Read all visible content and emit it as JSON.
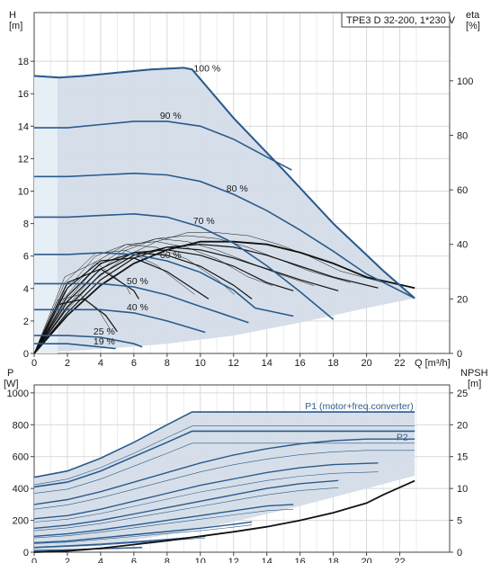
{
  "chart_data": [
    {
      "type": "line",
      "title": "TPE3 D 32-200, 1*230 V",
      "xlabel": "Q [m³/h]",
      "ylabel": "H",
      "ylabel_unit": "[m]",
      "y2label": "eta",
      "y2label_unit": "[%]",
      "xlim": [
        0,
        25
      ],
      "ylim": [
        0,
        21
      ],
      "y2lim": [
        0,
        125
      ],
      "x_ticks": [
        "0",
        "2",
        "4",
        "6",
        "8",
        "10",
        "12",
        "14",
        "16",
        "18",
        "20",
        "22"
      ],
      "y_ticks": [
        "0",
        "2",
        "4",
        "6",
        "8",
        "10",
        "12",
        "14",
        "16",
        "18"
      ],
      "y2_ticks": [
        "0",
        "20",
        "40",
        "60",
        "80",
        "100"
      ],
      "grid": true,
      "colors": {
        "curve": "#2a5a8c",
        "area": "#d4dde8",
        "eff": "#111111",
        "grid": "#d9d9d9",
        "axis": "#444444"
      },
      "series": [
        {
          "name": "100 %",
          "x": [
            0,
            1.5,
            3,
            5,
            7,
            9,
            9.5,
            12,
            15,
            18,
            21,
            22.9
          ],
          "y": [
            17.1,
            17.0,
            17.1,
            17.3,
            17.5,
            17.6,
            17.5,
            14.5,
            11.3,
            8.0,
            5.1,
            3.4
          ]
        },
        {
          "name": "90 %",
          "x": [
            0,
            2,
            4,
            6,
            8,
            10,
            12,
            14,
            15.5
          ],
          "y": [
            13.9,
            13.9,
            14.1,
            14.3,
            14.3,
            14.0,
            13.2,
            12.1,
            11.3
          ]
        },
        {
          "name": "80 %",
          "x": [
            0,
            2,
            4,
            6,
            8,
            10,
            12,
            14,
            16,
            18,
            20,
            22.9
          ],
          "y": [
            10.9,
            10.9,
            11.0,
            11.1,
            11.0,
            10.6,
            9.8,
            8.8,
            7.6,
            6.3,
            4.9,
            3.4
          ]
        },
        {
          "name": "70 %",
          "x": [
            0,
            2,
            4,
            6,
            8,
            10,
            12,
            14,
            16,
            18
          ],
          "y": [
            8.4,
            8.4,
            8.5,
            8.6,
            8.4,
            7.8,
            6.8,
            5.4,
            3.8,
            2.1
          ]
        },
        {
          "name": "60 %",
          "x": [
            0,
            2,
            4,
            6,
            8,
            10,
            12,
            13.3,
            15.6
          ],
          "y": [
            6.1,
            6.1,
            6.2,
            6.1,
            5.7,
            5.0,
            3.9,
            2.8,
            2.3
          ]
        },
        {
          "name": "50 %",
          "x": [
            0,
            2,
            4,
            6,
            8,
            10,
            12.9
          ],
          "y": [
            4.3,
            4.3,
            4.3,
            4.1,
            3.6,
            2.9,
            1.9
          ]
        },
        {
          "name": "40 %",
          "x": [
            0,
            2,
            4,
            6,
            8,
            10.3
          ],
          "y": [
            2.7,
            2.7,
            2.7,
            2.5,
            2.0,
            1.3
          ]
        },
        {
          "name": "25 %",
          "x": [
            0,
            2,
            4,
            6,
            6.5
          ],
          "y": [
            1.1,
            1.1,
            1.0,
            0.6,
            0.4
          ]
        },
        {
          "name": "19 %",
          "x": [
            0,
            2,
            4,
            4.9
          ],
          "y": [
            0.6,
            0.6,
            0.4,
            0.3
          ]
        }
      ],
      "efficiency": [
        {
          "x": [
            0,
            2,
            4,
            6,
            8,
            10,
            12,
            14,
            16,
            18,
            20,
            22.9
          ],
          "y": [
            0,
            14,
            25,
            33,
            38,
            41,
            41,
            40,
            37,
            33,
            28,
            24
          ]
        },
        {
          "x": [
            0,
            2,
            4,
            6,
            8,
            10,
            12,
            14,
            16,
            18,
            20.7
          ],
          "y": [
            0,
            15,
            27,
            35,
            39,
            40,
            39,
            36,
            32,
            28,
            24
          ]
        },
        {
          "x": [
            0,
            2,
            4,
            6,
            8,
            10,
            12,
            14,
            16,
            18.3
          ],
          "y": [
            0,
            17,
            29,
            36,
            39,
            38,
            35,
            31,
            27,
            23
          ]
        },
        {
          "x": [
            0,
            2,
            4,
            6,
            8,
            10,
            12,
            14,
            15.6
          ],
          "y": [
            0,
            19,
            31,
            37,
            38,
            36,
            32,
            26,
            23
          ]
        },
        {
          "x": [
            0,
            2,
            4,
            6,
            8,
            10,
            12,
            13.1
          ],
          "y": [
            0,
            21,
            33,
            37,
            36,
            32,
            25,
            20
          ]
        },
        {
          "x": [
            0,
            2,
            4,
            6,
            8,
            10.5
          ],
          "y": [
            0,
            24,
            34,
            35,
            30,
            20
          ]
        },
        {
          "x": [
            0,
            2,
            4,
            6,
            6.3
          ],
          "y": [
            0,
            26,
            31,
            23,
            20
          ]
        },
        {
          "x": [
            0,
            1.5,
            3,
            4.3,
            5.0
          ],
          "y": [
            0,
            18,
            20,
            14,
            8
          ]
        }
      ],
      "annotations": [
        "100 %",
        "90 %",
        "80 %",
        "70 %",
        "60 %",
        "50 %",
        "40 %",
        "25 %",
        "19 %"
      ]
    },
    {
      "type": "line",
      "ylabel": "P",
      "ylabel_unit": "[W]",
      "y2label": "NPSH",
      "y2label_unit": "[m]",
      "xlim": [
        0,
        25
      ],
      "ylim": [
        0,
        1050
      ],
      "y2lim": [
        0,
        26.25
      ],
      "x_ticks": [
        "0",
        "2",
        "4",
        "6",
        "8",
        "10",
        "12",
        "14",
        "16",
        "18",
        "20",
        "22"
      ],
      "y_ticks": [
        "0",
        "200",
        "400",
        "600",
        "800",
        "1000"
      ],
      "y2_ticks": [
        "0",
        "5",
        "10",
        "15",
        "20",
        "25"
      ],
      "grid": true,
      "series": [
        {
          "name": "P1 (motor+freq.converter)",
          "x": [
            0,
            2,
            4,
            6,
            8,
            9.5,
            12,
            15,
            18,
            21,
            22.9
          ],
          "y": [
            470,
            510,
            590,
            690,
            800,
            880,
            880,
            880,
            880,
            880,
            880
          ]
        },
        {
          "name": "P2",
          "x": [
            0,
            2,
            4,
            6,
            8,
            9.5,
            12,
            15,
            18,
            21,
            22.9
          ],
          "y": [
            410,
            440,
            510,
            600,
            690,
            760,
            760,
            760,
            760,
            760,
            760
          ]
        },
        {
          "name": "",
          "x": [
            0,
            2,
            4,
            6,
            8,
            10,
            12,
            14,
            16,
            18,
            20,
            22.9
          ],
          "y": [
            300,
            330,
            380,
            440,
            500,
            560,
            610,
            650,
            680,
            700,
            710,
            710
          ]
        },
        {
          "name": "",
          "x": [
            0,
            2,
            4,
            6,
            8,
            10,
            12,
            14,
            16,
            18,
            20.7
          ],
          "y": [
            210,
            230,
            270,
            320,
            370,
            420,
            460,
            500,
            530,
            550,
            560
          ]
        },
        {
          "name": "",
          "x": [
            0,
            2,
            4,
            6,
            8,
            10,
            12,
            14,
            16,
            18.3
          ],
          "y": [
            150,
            170,
            200,
            240,
            280,
            320,
            360,
            400,
            430,
            450
          ]
        },
        {
          "name": "",
          "x": [
            0,
            2,
            4,
            6,
            8,
            10,
            12,
            14,
            15.6
          ],
          "y": [
            100,
            115,
            140,
            170,
            200,
            230,
            260,
            290,
            300
          ]
        },
        {
          "name": "",
          "x": [
            0,
            2,
            4,
            6,
            8,
            10,
            12,
            13.1
          ],
          "y": [
            60,
            70,
            90,
            110,
            130,
            150,
            175,
            190
          ]
        },
        {
          "name": "",
          "x": [
            0,
            2,
            4,
            6,
            8,
            10.3
          ],
          "y": [
            30,
            40,
            50,
            65,
            80,
            100
          ]
        },
        {
          "name": "",
          "x": [
            0,
            2,
            4,
            6.5
          ],
          "y": [
            10,
            15,
            22,
            30
          ]
        }
      ],
      "npsh": {
        "x": [
          0,
          2,
          4,
          6,
          8,
          10,
          12,
          14,
          16,
          18,
          20,
          21,
          22.9
        ],
        "y": [
          0,
          0.2,
          0.6,
          1.2,
          1.8,
          2.5,
          3.2,
          4.0,
          5.0,
          6.2,
          7.7,
          9.0,
          11.2
        ]
      },
      "annotations": [
        "P1 (motor+freq.converter)",
        "P2"
      ]
    }
  ]
}
